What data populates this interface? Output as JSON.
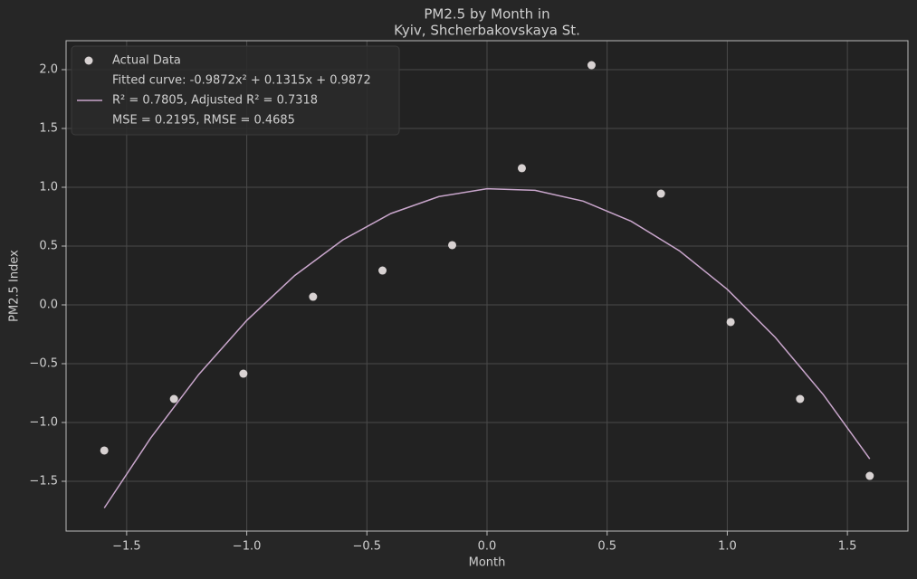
{
  "chart_data": {
    "type": "scatter",
    "title": [
      "PM2.5 by Month in",
      "Kyiv, Shcherbakovskaya St."
    ],
    "x_label": "Month",
    "y_label": "PM2.5 Index",
    "xlim": [
      -1.752,
      1.752
    ],
    "ylim": [
      -1.923,
      2.246
    ],
    "xticks": [
      {
        "value": -1.5,
        "label": "−1.5"
      },
      {
        "value": -1.0,
        "label": "−1.0"
      },
      {
        "value": -0.5,
        "label": "−0.5"
      },
      {
        "value": 0,
        "label": "0.0"
      },
      0.5,
      {
        "value": 1.0,
        "label": "1.0"
      },
      1.5
    ],
    "yticks": [
      {
        "value": -1.5,
        "label": "−1.5"
      },
      {
        "value": -1.0,
        "label": "−1.0"
      },
      {
        "value": -0.5,
        "label": "−0.5"
      },
      {
        "value": 0,
        "label": "0.0"
      },
      0.5,
      {
        "value": 1.0,
        "label": "1.0"
      },
      1.5,
      {
        "value": 2.0,
        "label": "2.0"
      }
    ],
    "grid": true,
    "legend": "upper left",
    "series": [
      {
        "name": "Actual Data",
        "type": "scatter",
        "color": "#d8d2d2",
        "x": [
          -1.593,
          -1.303,
          -1.014,
          -0.724,
          -0.435,
          -0.145,
          0.145,
          0.435,
          0.724,
          1.014,
          1.303,
          1.593
        ],
        "values": [
          -1.238,
          -0.8,
          -0.585,
          0.069,
          0.292,
          0.508,
          1.162,
          2.038,
          0.946,
          -0.146,
          -0.8,
          -1.454
        ]
      },
      {
        "name": "Fitted curve: -0.9872x² + 0.1315x + 0.9872",
        "type": "line",
        "color": "#c9a6cc",
        "legend_extra": [
          "R² = 0.7805, Adjusted R² = 0.7318",
          "MSE = 0.2195, RMSE = 0.4685"
        ],
        "x": [
          -1.593,
          -1.4,
          -1.2,
          -1.0,
          -0.8,
          -0.6,
          -0.4,
          -0.2,
          0,
          0.2,
          0.4,
          0.6,
          0.8,
          1.0,
          1.2,
          1.4,
          1.593
        ],
        "values": [
          -1.727,
          -1.132,
          -0.592,
          -0.132,
          0.25,
          0.553,
          0.777,
          0.921,
          0.987,
          0.974,
          0.882,
          0.711,
          0.461,
          0.132,
          -0.277,
          -0.764,
          -1.309
        ]
      }
    ]
  }
}
